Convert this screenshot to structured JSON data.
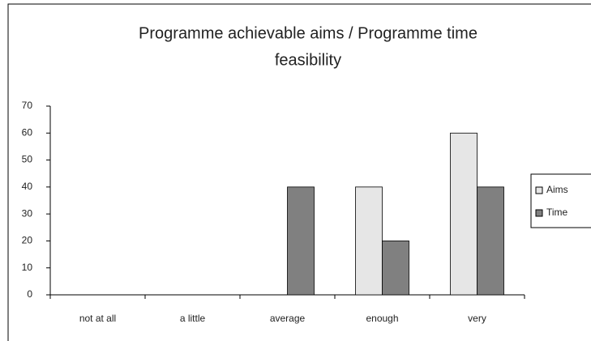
{
  "chart_data": {
    "type": "bar",
    "title_lines": [
      "Programme achievable aims / Programme time",
      "feasibility"
    ],
    "categories": [
      "not at all",
      "a little",
      "average",
      "enough",
      "very"
    ],
    "series": [
      {
        "name": "Aims",
        "color": "#e6e6e6",
        "values": [
          0,
          0,
          0,
          40,
          60
        ]
      },
      {
        "name": "Time",
        "color": "#808080",
        "values": [
          0,
          0,
          40,
          20,
          40
        ]
      }
    ],
    "ylim": [
      0,
      70
    ],
    "yticks": [
      0,
      10,
      20,
      30,
      40,
      50,
      60,
      70
    ],
    "legend": "right",
    "grid": false
  }
}
